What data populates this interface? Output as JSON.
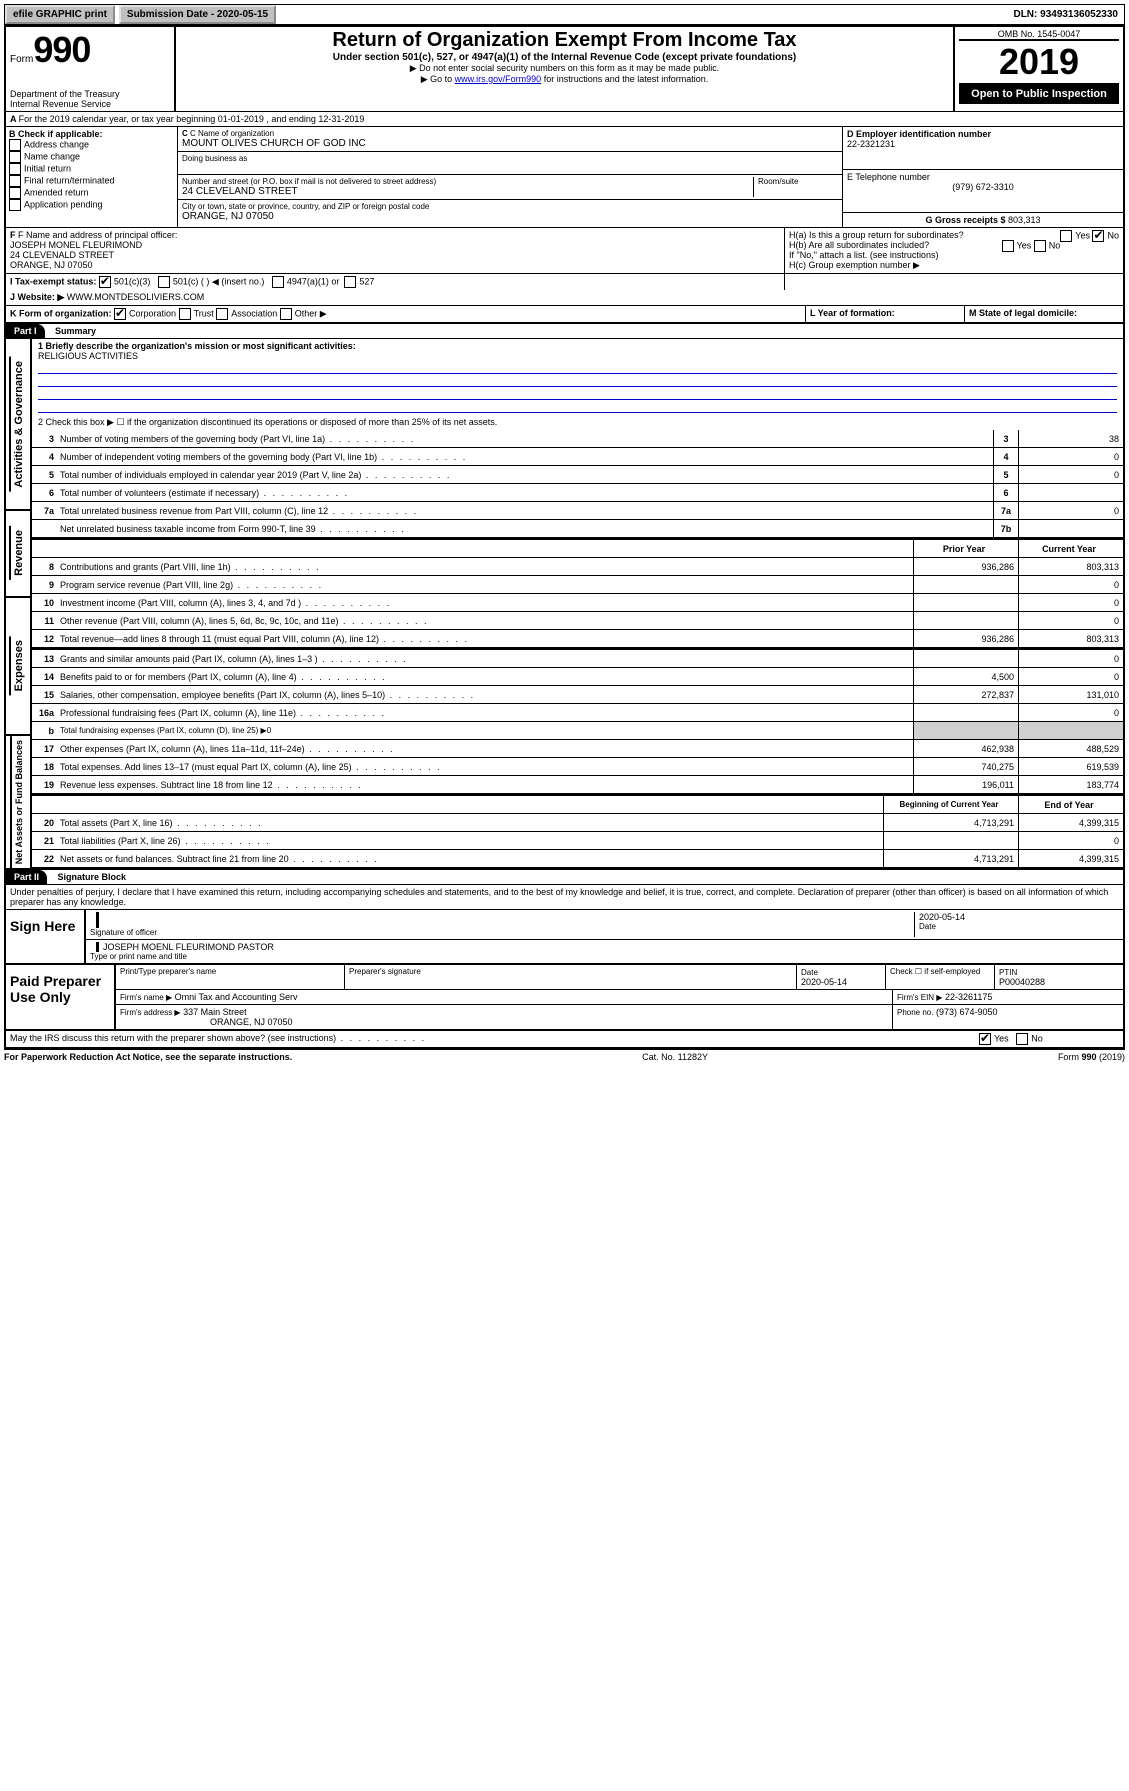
{
  "topbar": {
    "efile": "efile GRAPHIC print",
    "submission_label": "Submission Date - 2020-05-15",
    "dln": "DLN: 93493136052330"
  },
  "header": {
    "form_label": "Form",
    "form_no": "990",
    "dept": "Department of the Treasury",
    "irs": "Internal Revenue Service",
    "title": "Return of Organization Exempt From Income Tax",
    "subtitle": "Under section 501(c), 527, or 4947(a)(1) of the Internal Revenue Code (except private foundations)",
    "note1": "Do not enter social security numbers on this form as it may be made public.",
    "note2_pre": "Go to ",
    "note2_link": "www.irs.gov/Form990",
    "note2_post": " for instructions and the latest information.",
    "omb": "OMB No. 1545-0047",
    "year": "2019",
    "open": "Open to Public Inspection"
  },
  "line_a": "For the 2019 calendar year, or tax year beginning 01-01-2019   , and ending 12-31-2019",
  "box_b": {
    "label": "B Check if applicable:",
    "items": [
      "Address change",
      "Name change",
      "Initial return",
      "Final return/terminated",
      "Amended return",
      "Application pending"
    ]
  },
  "box_c": {
    "name_lbl": "C Name of organization",
    "name_val": "MOUNT OLIVES CHURCH OF GOD INC",
    "dba_lbl": "Doing business as",
    "addr_lbl": "Number and street (or P.O. box if mail is not delivered to street address)",
    "room_lbl": "Room/suite",
    "addr_val": "24 CLEVELAND STREET",
    "city_lbl": "City or town, state or province, country, and ZIP or foreign postal code",
    "city_val": "ORANGE, NJ  07050"
  },
  "box_d": {
    "lbl": "D Employer identification number",
    "val": "22-2321231"
  },
  "box_e": {
    "lbl": "E Telephone number",
    "val": "(979) 672-3310"
  },
  "box_g": {
    "lbl": "G Gross receipts $",
    "val": "803,313"
  },
  "box_f": {
    "lbl": "F Name and address of principal officer:",
    "name": "JOSEPH MONEL FLEURIMOND",
    "addr1": "24 CLEVENALD STREET",
    "addr2": "ORANGE, NJ  07050"
  },
  "box_h": {
    "a_lbl": "H(a)  Is this a group return for subordinates?",
    "b_lbl": "H(b)  Are all subordinates included?",
    "b_note": "If \"No,\" attach a list. (see instructions)",
    "c_lbl": "H(c)  Group exemption number ▶"
  },
  "row_i": {
    "lbl": "I   Tax-exempt status:",
    "opts": [
      "501(c)(3)",
      "501(c) (  ) ◀ (insert no.)",
      "4947(a)(1) or",
      "527"
    ]
  },
  "row_j": {
    "lbl": "J   Website: ▶",
    "val": "  WWW.MONTDESOLIVIERS.COM"
  },
  "row_k": {
    "lbl": "K Form of organization:",
    "opts": [
      "Corporation",
      "Trust",
      "Association",
      "Other ▶"
    ]
  },
  "row_l": {
    "lbl": "L Year of formation:"
  },
  "row_m": {
    "lbl": "M State of legal domicile:"
  },
  "part1": {
    "hdr": "Part I",
    "title": "Summary",
    "line1_lbl": "1  Briefly describe the organization's mission or most significant activities:",
    "line1_val": "RELIGIOUS ACTIVITIES",
    "line2": "2   Check this box ▶ ☐  if the organization discontinued its operations or disposed of more than 25% of its net assets.",
    "sidebar_labels": [
      "Activities & Governance",
      "Revenue",
      "Expenses",
      "Net Assets or Fund Balances"
    ],
    "col_hdrs": {
      "prior": "Prior Year",
      "current": "Current Year",
      "begin": "Beginning of Current Year",
      "end": "End of Year"
    },
    "rows_gov": [
      {
        "n": "3",
        "d": "Number of voting members of the governing body (Part VI, line 1a)",
        "box": "3",
        "v": "38"
      },
      {
        "n": "4",
        "d": "Number of independent voting members of the governing body (Part VI, line 1b)",
        "box": "4",
        "v": "0"
      },
      {
        "n": "5",
        "d": "Total number of individuals employed in calendar year 2019 (Part V, line 2a)",
        "box": "5",
        "v": "0"
      },
      {
        "n": "6",
        "d": "Total number of volunteers (estimate if necessary)",
        "box": "6",
        "v": ""
      },
      {
        "n": "7a",
        "d": "Total unrelated business revenue from Part VIII, column (C), line 12",
        "box": "7a",
        "v": "0"
      },
      {
        "n": "",
        "d": "Net unrelated business taxable income from Form 990-T, line 39",
        "box": "7b",
        "v": ""
      }
    ],
    "rows_rev": [
      {
        "n": "8",
        "d": "Contributions and grants (Part VIII, line 1h)",
        "p": "936,286",
        "c": "803,313"
      },
      {
        "n": "9",
        "d": "Program service revenue (Part VIII, line 2g)",
        "p": "",
        "c": "0"
      },
      {
        "n": "10",
        "d": "Investment income (Part VIII, column (A), lines 3, 4, and 7d )",
        "p": "",
        "c": "0"
      },
      {
        "n": "11",
        "d": "Other revenue (Part VIII, column (A), lines 5, 6d, 8c, 9c, 10c, and 11e)",
        "p": "",
        "c": "0"
      },
      {
        "n": "12",
        "d": "Total revenue—add lines 8 through 11 (must equal Part VIII, column (A), line 12)",
        "p": "936,286",
        "c": "803,313"
      }
    ],
    "rows_exp": [
      {
        "n": "13",
        "d": "Grants and similar amounts paid (Part IX, column (A), lines 1–3 )",
        "p": "",
        "c": "0"
      },
      {
        "n": "14",
        "d": "Benefits paid to or for members (Part IX, column (A), line 4)",
        "p": "4,500",
        "c": "0"
      },
      {
        "n": "15",
        "d": "Salaries, other compensation, employee benefits (Part IX, column (A), lines 5–10)",
        "p": "272,837",
        "c": "131,010"
      },
      {
        "n": "16a",
        "d": "Professional fundraising fees (Part IX, column (A), line 11e)",
        "p": "",
        "c": "0"
      },
      {
        "n": "b",
        "d": "Total fundraising expenses (Part IX, column (D), line 25) ▶0",
        "p": null,
        "c": null
      },
      {
        "n": "17",
        "d": "Other expenses (Part IX, column (A), lines 11a–11d, 11f–24e)",
        "p": "462,938",
        "c": "488,529"
      },
      {
        "n": "18",
        "d": "Total expenses. Add lines 13–17 (must equal Part IX, column (A), line 25)",
        "p": "740,275",
        "c": "619,539"
      },
      {
        "n": "19",
        "d": "Revenue less expenses. Subtract line 18 from line 12",
        "p": "196,011",
        "c": "183,774"
      }
    ],
    "rows_net": [
      {
        "n": "20",
        "d": "Total assets (Part X, line 16)",
        "p": "4,713,291",
        "c": "4,399,315"
      },
      {
        "n": "21",
        "d": "Total liabilities (Part X, line 26)",
        "p": "",
        "c": "0"
      },
      {
        "n": "22",
        "d": "Net assets or fund balances. Subtract line 21 from line 20",
        "p": "4,713,291",
        "c": "4,399,315"
      }
    ]
  },
  "part2": {
    "hdr": "Part II",
    "title": "Signature Block",
    "perjury": "Under penalties of perjury, I declare that I have examined this return, including accompanying schedules and statements, and to the best of my knowledge and belief, it is true, correct, and complete. Declaration of preparer (other than officer) is based on all information of which preparer has any knowledge.",
    "sign_here": "Sign Here",
    "sig_officer": "Signature of officer",
    "sig_date": "2020-05-14",
    "sig_date_lbl": "Date",
    "officer_name": "JOSEPH MOENL FLEURIMOND  PASTOR",
    "type_name_lbl": "Type or print name and title",
    "paid": "Paid Preparer Use Only",
    "prep_name_lbl": "Print/Type preparer's name",
    "prep_sig_lbl": "Preparer's signature",
    "prep_date_lbl": "Date",
    "prep_date": "2020-05-14",
    "check_self": "Check ☐ if self-employed",
    "ptin_lbl": "PTIN",
    "ptin": "P00040288",
    "firm_name_lbl": "Firm's name   ▶",
    "firm_name": "Omni Tax and Accounting Serv",
    "firm_ein_lbl": "Firm's EIN ▶",
    "firm_ein": "22-3261175",
    "firm_addr_lbl": "Firm's address ▶",
    "firm_addr1": "337 Main Street",
    "firm_addr2": "ORANGE, NJ  07050",
    "phone_lbl": "Phone no.",
    "phone": "(973) 674-9050",
    "discuss": "May the IRS discuss this return with the preparer shown above? (see instructions)",
    "yes": "Yes",
    "no": "No"
  },
  "footer": {
    "left": "For Paperwork Reduction Act Notice, see the separate instructions.",
    "mid": "Cat. No. 11282Y",
    "right": "Form 990 (2019)"
  }
}
